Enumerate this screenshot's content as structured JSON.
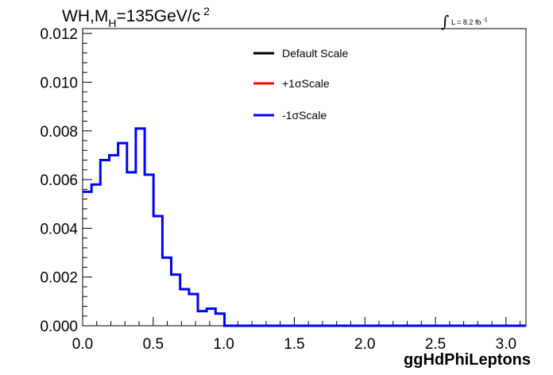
{
  "title": {
    "main": "WH,M",
    "sub": "H",
    "rest": "=135GeV/c",
    "sup": "2"
  },
  "lumi": {
    "label": "L = 8.2 fb",
    "sup": "-1"
  },
  "chart_data": {
    "type": "line",
    "xlabel": "ggHdPhiLeptons",
    "ylabel": "",
    "xlim": [
      0.0,
      3.1416
    ],
    "ylim": [
      0.0,
      0.0122
    ],
    "x_ticks": [
      "0.0",
      "0.5",
      "1.0",
      "1.5",
      "2.0",
      "2.5",
      "3.0"
    ],
    "y_ticks": [
      "0.000",
      "0.002",
      "0.004",
      "0.006",
      "0.008",
      "0.010",
      "0.012"
    ],
    "bin_width": 0.0628,
    "legend": [
      {
        "name": "Default Scale",
        "color": "#000000"
      },
      {
        "name": "+1σScale",
        "color": "#ff0000"
      },
      {
        "name": "-1σScale",
        "color": "#0000ff"
      }
    ],
    "series": [
      {
        "name": "-1σScale",
        "color": "#0000ff",
        "values": [
          0.0055,
          0.0058,
          0.0068,
          0.007,
          0.0075,
          0.0063,
          0.0081,
          0.0062,
          0.0045,
          0.0028,
          0.0021,
          0.0015,
          0.0013,
          0.0006,
          0.0007,
          0.0005,
          0.0,
          0.0,
          0.0,
          0.0,
          0.0,
          0.0,
          0.0,
          0.0,
          0.0,
          0.0,
          0.0,
          0.0,
          0.0,
          0.0,
          0.0,
          0.0,
          0.0,
          0.0,
          0.0,
          0.0,
          0.0,
          0.0,
          0.0,
          0.0,
          0.0,
          0.0,
          0.0,
          0.0,
          0.0,
          0.0,
          0.0,
          0.0,
          0.0,
          0.0
        ]
      }
    ]
  }
}
